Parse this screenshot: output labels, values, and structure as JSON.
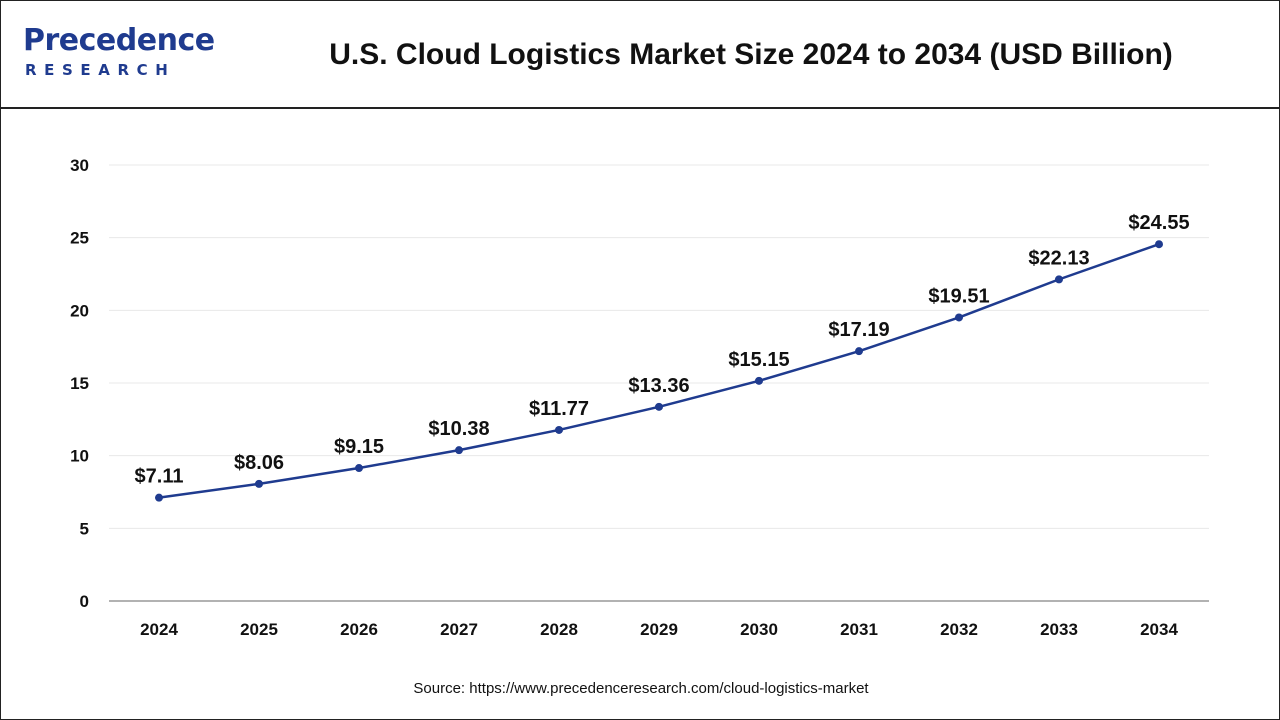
{
  "header": {
    "logo_line1": "Precedence",
    "logo_line2": "RESEARCH",
    "title": "U.S. Cloud Logistics Market Size 2024 to 2034 (USD Billion)"
  },
  "source": "Source: https://www.precedenceresearch.com/cloud-logistics-market",
  "colors": {
    "line": "#1f3b8f",
    "axis": "#999999",
    "grid": "#e8e8e8",
    "brand": "#1f3b8f"
  },
  "chart_data": {
    "type": "line",
    "title": "U.S. Cloud Logistics Market Size 2024 to 2034 (USD Billion)",
    "x": [
      "2024",
      "2025",
      "2026",
      "2027",
      "2028",
      "2029",
      "2030",
      "2031",
      "2032",
      "2033",
      "2034"
    ],
    "series": [
      {
        "values": [
          7.11,
          8.06,
          9.15,
          10.38,
          11.77,
          13.36,
          15.15,
          17.19,
          19.51,
          22.13,
          24.55
        ],
        "labels": [
          "$7.11",
          "$8.06",
          "$9.15",
          "$10.38",
          "$11.77",
          "$13.36",
          "$15.15",
          "$17.19",
          "$19.51",
          "$22.13",
          "$24.55"
        ]
      }
    ],
    "yticks": [
      "0",
      "5",
      "10",
      "15",
      "20",
      "25",
      "30"
    ],
    "ylim": [
      0,
      30
    ],
    "xlabel": "",
    "ylabel": "",
    "grid": true,
    "legend": "none"
  }
}
